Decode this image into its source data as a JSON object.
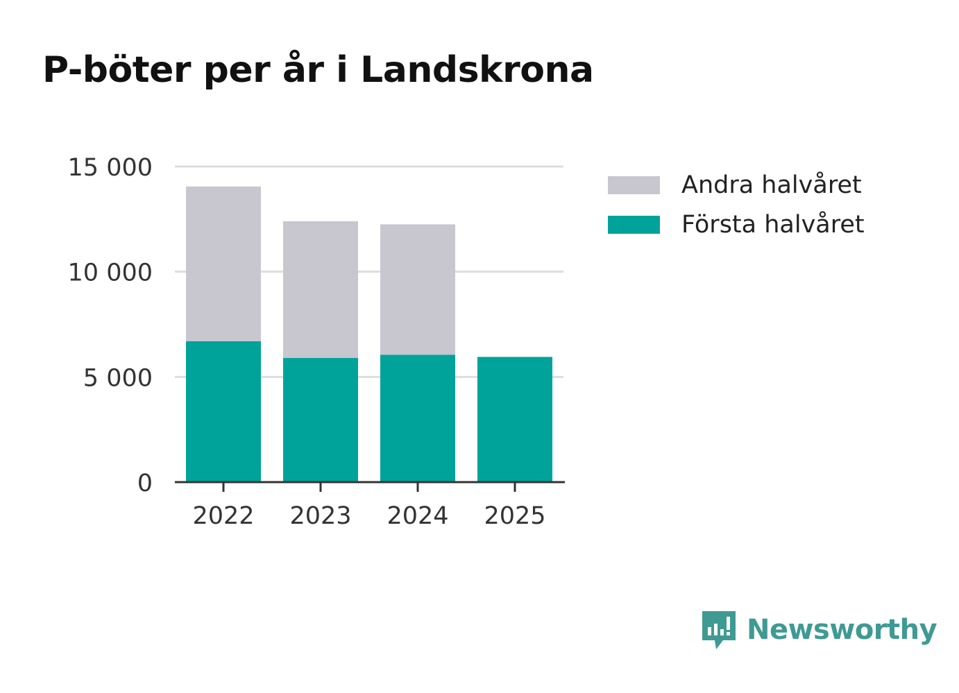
{
  "chart_data": {
    "type": "bar",
    "stacked": true,
    "title": "P-böter per år i Landskrona",
    "categories": [
      "2022",
      "2023",
      "2024",
      "2025"
    ],
    "series": [
      {
        "name": "Första halvåret",
        "color": "#00a39a",
        "values": [
          6700,
          5900,
          6050,
          5950
        ]
      },
      {
        "name": "Andra halvåret",
        "color": "#c8c7d0",
        "values": [
          7350,
          6500,
          6200,
          0
        ]
      }
    ],
    "legend": [
      {
        "label": "Andra halvåret",
        "color": "#c8c7d0"
      },
      {
        "label": "Första halvåret",
        "color": "#00a39a"
      }
    ],
    "ylim": [
      0,
      15000
    ],
    "yticks": [
      0,
      5000,
      10000,
      15000
    ],
    "ytick_labels": [
      "0",
      "5 000",
      "10 000",
      "15 000"
    ],
    "xlabel": "",
    "ylabel": "",
    "grid": true,
    "legend_position": "right"
  },
  "brand": {
    "name": "Newsworthy",
    "color": "#3f9a93"
  }
}
